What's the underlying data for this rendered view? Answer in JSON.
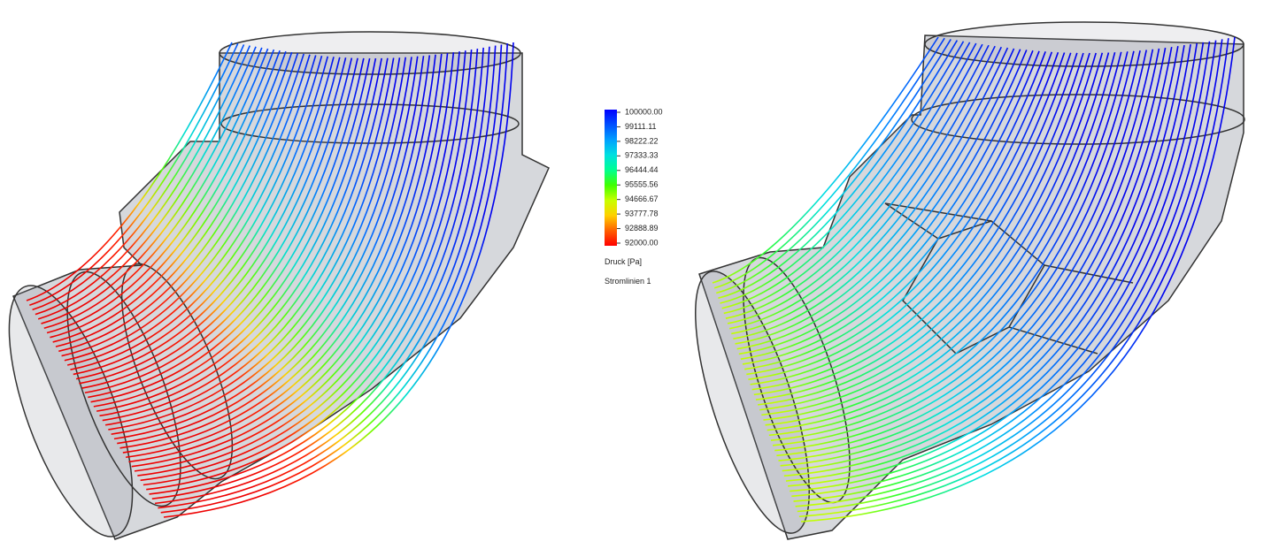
{
  "legend": {
    "ticks": [
      "100000.00",
      "99111.11",
      "98222.22",
      "97333.33",
      "96444.44",
      "95555.56",
      "94666.67",
      "93777.78",
      "92888.89",
      "92000.00"
    ],
    "colors": [
      "#0000ff",
      "#0050ff",
      "#00a0ff",
      "#00e0e0",
      "#00ff90",
      "#40ff00",
      "#c8ff00",
      "#ffd000",
      "#ff6000",
      "#ff0000"
    ],
    "quantity": "Druck [Pa]",
    "name": "Stromlinien 1"
  }
}
